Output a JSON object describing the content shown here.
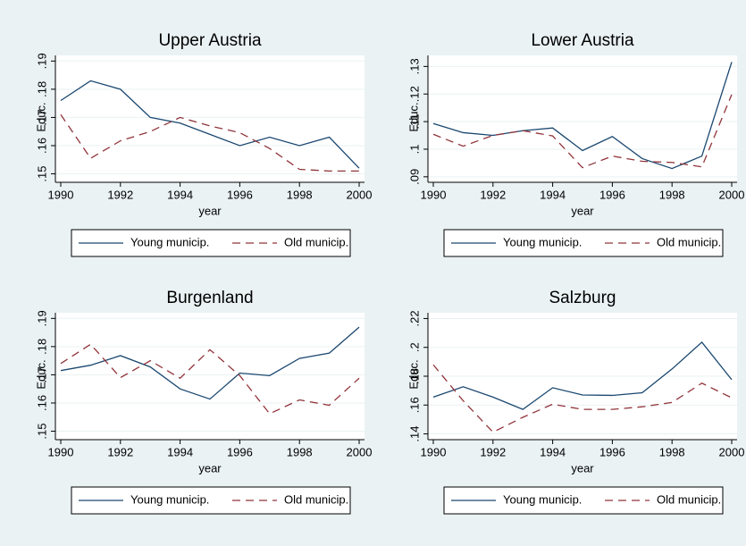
{
  "chart_data": [
    {
      "type": "line",
      "title": "Upper Austria",
      "x_label": "year",
      "y_label": "Educ.",
      "x": [
        1990,
        1991,
        1992,
        1993,
        1994,
        1995,
        1996,
        1997,
        1998,
        1999,
        2000
      ],
      "xlim": [
        1990,
        2000
      ],
      "xticks": [
        1990,
        1992,
        1994,
        1996,
        1998,
        2000
      ],
      "ylim": [
        0.147,
        0.192
      ],
      "yticks": [
        {
          "value": 0.15,
          "label": ".15"
        },
        {
          "value": 0.16,
          "label": ".16"
        },
        {
          "value": 0.17,
          "label": ".17"
        },
        {
          "value": 0.18,
          "label": ".18"
        },
        {
          "value": 0.19,
          "label": ".19"
        }
      ],
      "grid": true,
      "series": [
        {
          "name": "Young municip.",
          "color": "#1a476f",
          "dash": false,
          "values": [
            0.176,
            0.183,
            0.18,
            0.17,
            0.168,
            0.164,
            0.16,
            0.163,
            0.16,
            0.163,
            0.152
          ]
        },
        {
          "name": "Old municip.",
          "color": "#90353b",
          "dash": true,
          "values": [
            0.171,
            0.1555,
            0.1617,
            0.165,
            0.17,
            0.167,
            0.1646,
            0.159,
            0.1516,
            0.151,
            0.151
          ]
        }
      ]
    },
    {
      "type": "line",
      "title": "Lower Austria",
      "x_label": "year",
      "y_label": "Educ.",
      "x": [
        1990,
        1991,
        1992,
        1993,
        1994,
        1995,
        1996,
        1997,
        1998,
        1999,
        2000
      ],
      "xlim": [
        1990,
        2000
      ],
      "xticks": [
        1990,
        1992,
        1994,
        1996,
        1998,
        2000
      ],
      "ylim": [
        0.088,
        0.134
      ],
      "yticks": [
        {
          "value": 0.09,
          "label": ".09"
        },
        {
          "value": 0.1,
          "label": ".1"
        },
        {
          "value": 0.11,
          "label": ".11"
        },
        {
          "value": 0.12,
          "label": ".12"
        },
        {
          "value": 0.13,
          "label": ".13"
        }
      ],
      "grid": true,
      "series": [
        {
          "name": "Young municip.",
          "color": "#1a476f",
          "dash": false,
          "values": [
            0.1093,
            0.106,
            0.105,
            0.1067,
            0.1077,
            0.0995,
            0.1046,
            0.0966,
            0.093,
            0.0975,
            0.1316
          ]
        },
        {
          "name": "Old municip.",
          "color": "#90353b",
          "dash": true,
          "values": [
            0.1054,
            0.1011,
            0.105,
            0.1067,
            0.1048,
            0.0933,
            0.0975,
            0.0956,
            0.0952,
            0.0936,
            0.1198
          ]
        }
      ]
    },
    {
      "type": "line",
      "title": "Burgenland",
      "x_label": "year",
      "y_label": "Educ.",
      "x": [
        1990,
        1991,
        1992,
        1993,
        1994,
        1995,
        1996,
        1997,
        1998,
        1999,
        2000
      ],
      "xlim": [
        1990,
        2000
      ],
      "xticks": [
        1990,
        1992,
        1994,
        1996,
        1998,
        2000
      ],
      "ylim": [
        0.147,
        0.192
      ],
      "yticks": [
        {
          "value": 0.15,
          "label": ".15"
        },
        {
          "value": 0.16,
          "label": ".16"
        },
        {
          "value": 0.17,
          "label": ".17"
        },
        {
          "value": 0.18,
          "label": ".18"
        },
        {
          "value": 0.19,
          "label": ".19"
        }
      ],
      "grid": true,
      "series": [
        {
          "name": "Young municip.",
          "color": "#1a476f",
          "dash": false,
          "values": [
            0.1715,
            0.1734,
            0.1768,
            0.1728,
            0.165,
            0.1614,
            0.1706,
            0.1697,
            0.1758,
            0.1777,
            0.1869
          ]
        },
        {
          "name": "Old municip.",
          "color": "#90353b",
          "dash": true,
          "values": [
            0.174,
            0.1808,
            0.169,
            0.175,
            0.1688,
            0.1789,
            0.1697,
            0.1562,
            0.1611,
            0.1592,
            0.1688
          ]
        }
      ]
    },
    {
      "type": "line",
      "title": "Salzburg",
      "x_label": "year",
      "y_label": "Educ.",
      "x": [
        1990,
        1991,
        1992,
        1993,
        1994,
        1995,
        1996,
        1997,
        1998,
        1999,
        2000
      ],
      "xlim": [
        1990,
        2000
      ],
      "xticks": [
        1990,
        1992,
        1994,
        1996,
        1998,
        2000
      ],
      "ylim": [
        0.136,
        0.224
      ],
      "yticks": [
        {
          "value": 0.14,
          "label": ".14"
        },
        {
          "value": 0.16,
          "label": ".16"
        },
        {
          "value": 0.18,
          "label": ".18"
        },
        {
          "value": 0.2,
          "label": ".2"
        },
        {
          "value": 0.22,
          "label": ".22"
        }
      ],
      "grid": true,
      "series": [
        {
          "name": "Young municip.",
          "color": "#1a476f",
          "dash": false,
          "values": [
            0.1655,
            0.1727,
            0.1655,
            0.157,
            0.172,
            0.167,
            0.1667,
            0.1685,
            0.185,
            0.2036,
            0.1776
          ]
        },
        {
          "name": "Old municip.",
          "color": "#90353b",
          "dash": true,
          "values": [
            0.1879,
            0.163,
            0.1412,
            0.1515,
            0.1606,
            0.157,
            0.157,
            0.1588,
            0.1618,
            0.1752,
            0.165
          ]
        }
      ]
    }
  ]
}
